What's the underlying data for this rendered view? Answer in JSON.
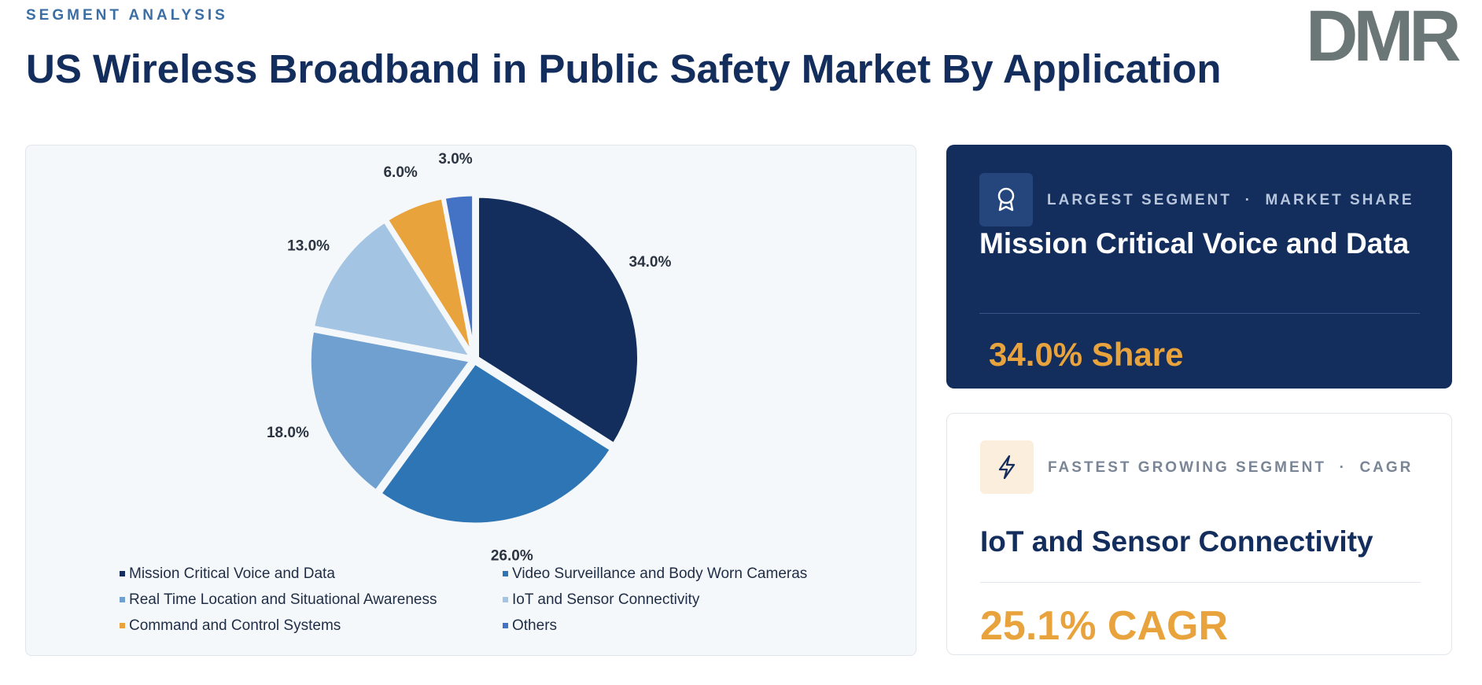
{
  "header": {
    "eyebrow": "SEGMENT ANALYSIS",
    "title": "US Wireless Broadband in Public Safety Market By Application",
    "logo": "DMR"
  },
  "chart_data": {
    "type": "pie",
    "categories": [
      "Mission Critical Voice and Data",
      "Video Surveillance and Body Worn Cameras",
      "Real Time Location and Situational Awareness",
      "IoT and Sensor Connectivity",
      "Command and Control Systems",
      "Others"
    ],
    "values": [
      34,
      26,
      18,
      13,
      6,
      3
    ],
    "value_labels": [
      "34.0%",
      "26.0%",
      "18.0%",
      "13.0%",
      "6.0%",
      "3.0%"
    ],
    "colors": [
      "#132d5c",
      "#2e75b6",
      "#6fa0d0",
      "#a3c4e3",
      "#e8a33d",
      "#4472c4"
    ]
  },
  "cards": [
    {
      "label": "LARGEST SEGMENT  ·  MARKET SHARE",
      "name": "Mission Critical Voice and Data",
      "value": "34.0% Share"
    },
    {
      "label": "FASTEST GROWING SEGMENT  ·  CAGR",
      "name": "IoT and Sensor Connectivity",
      "value": "25.1% CAGR"
    }
  ]
}
